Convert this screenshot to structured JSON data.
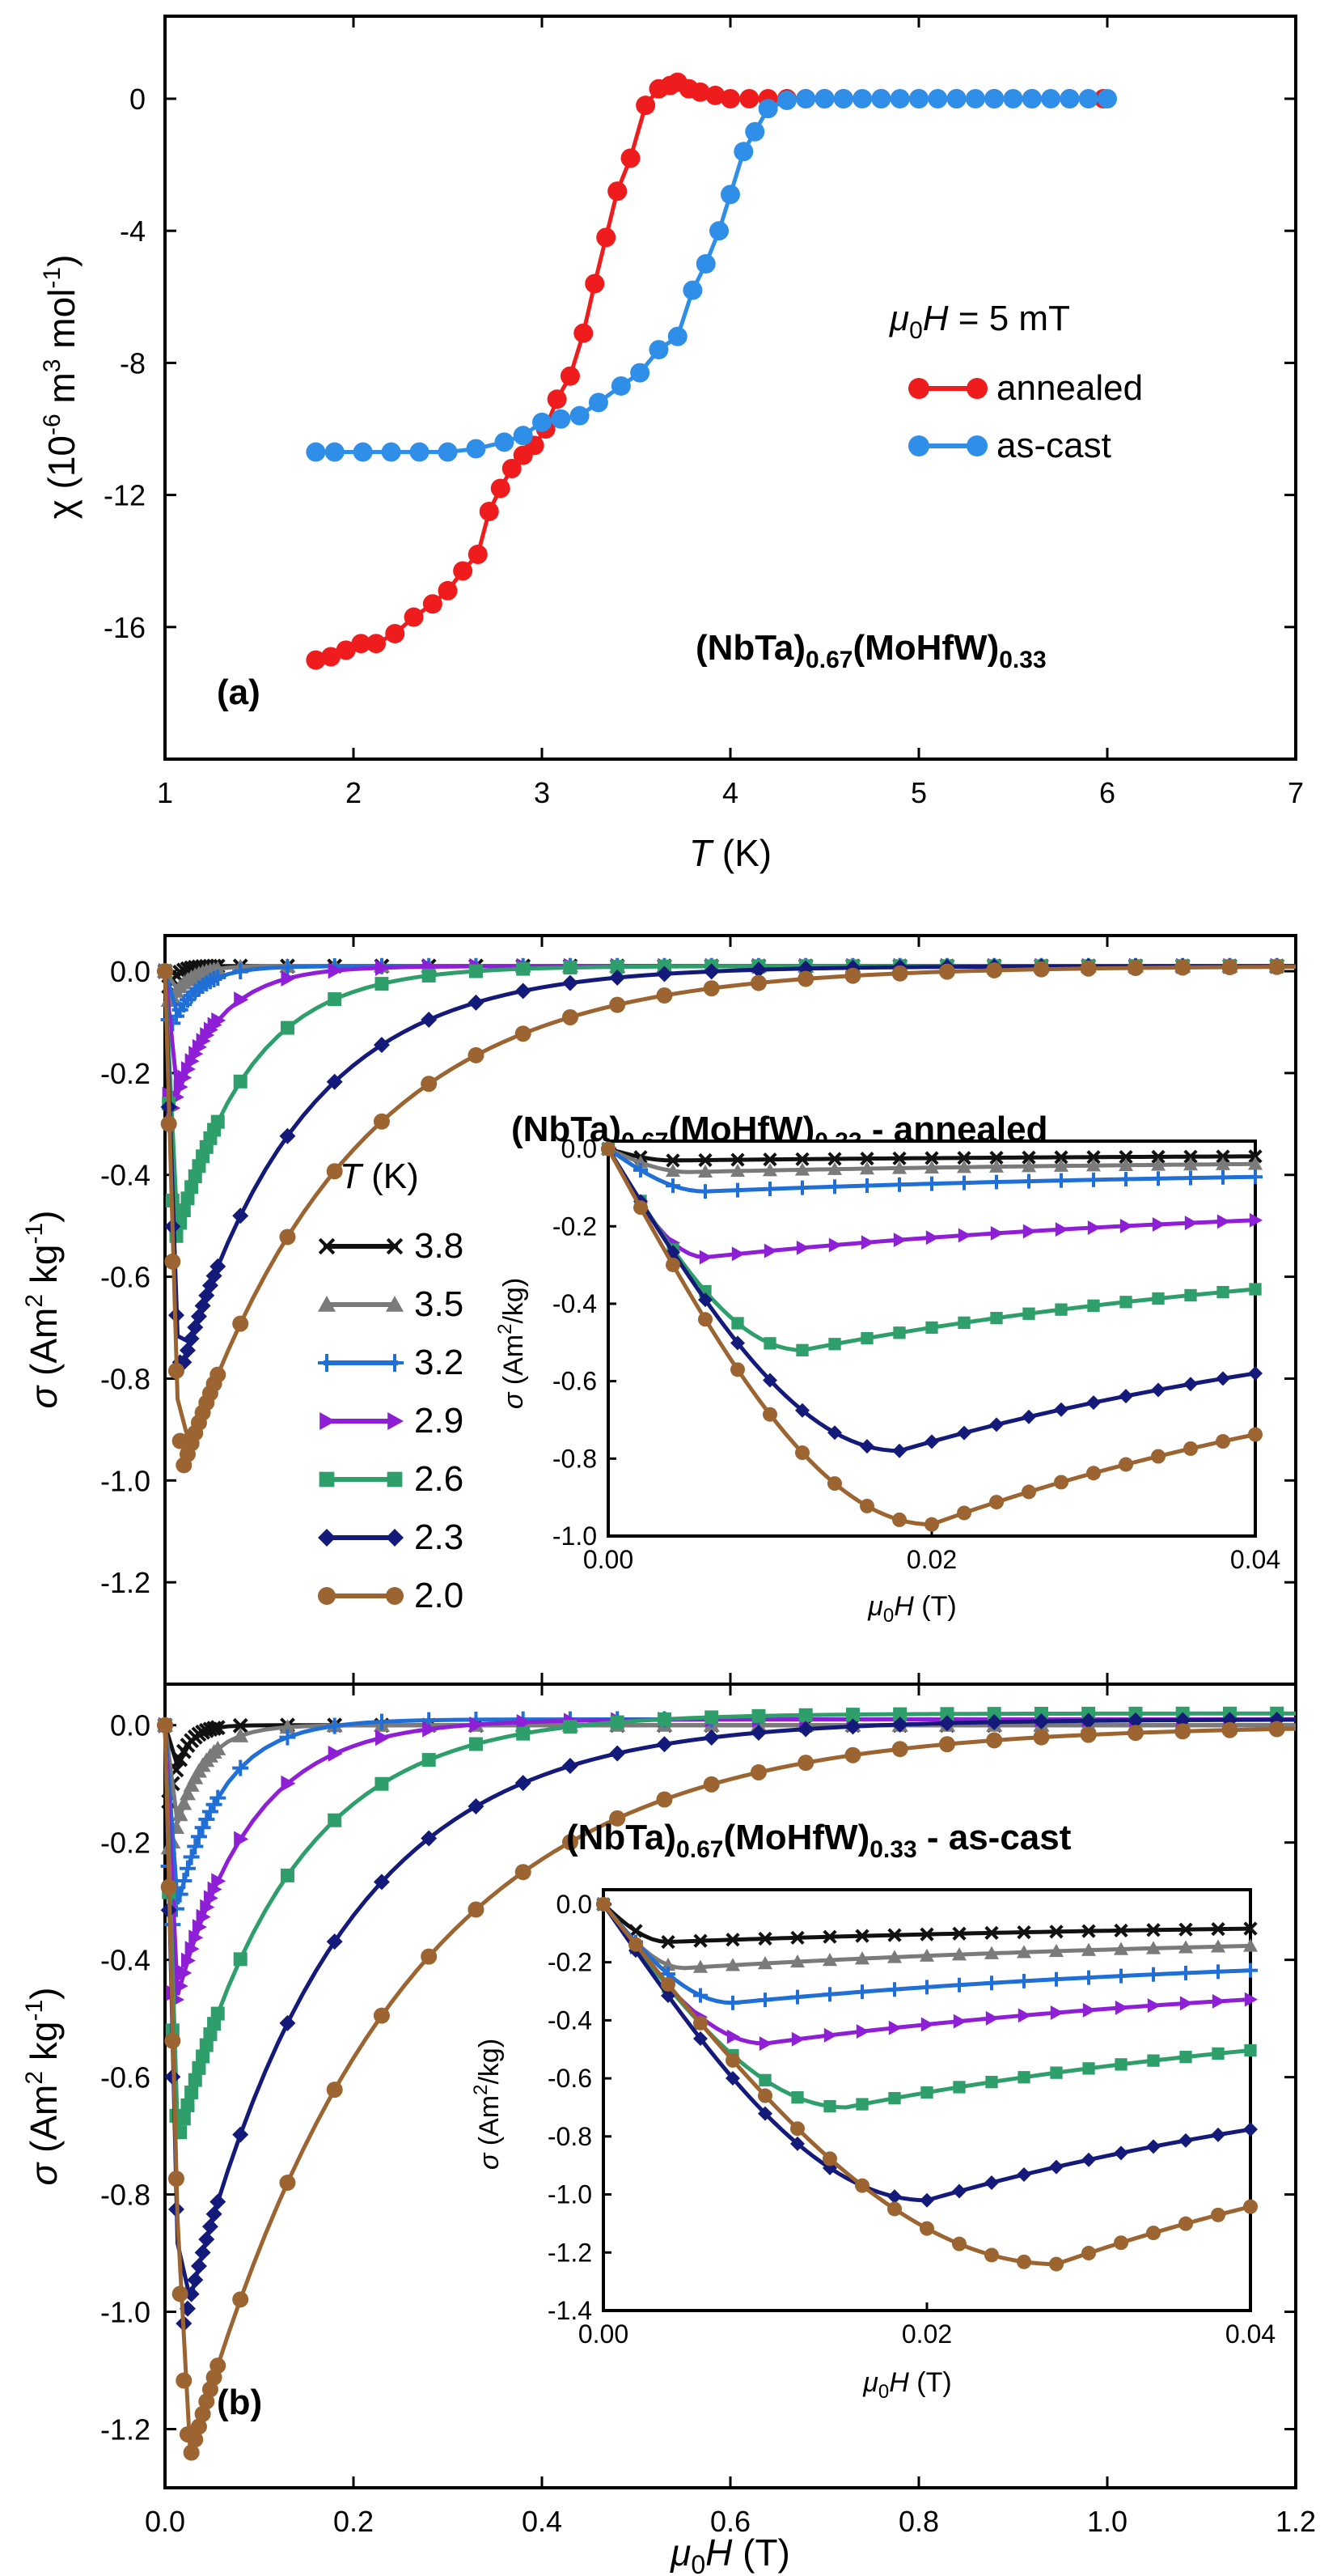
{
  "colors": {
    "annealed": "#ee1c1c",
    "as_cast": "#2f8fe8",
    "T3.8": "#111111",
    "T3.5": "#7a7a7a",
    "T3.2": "#1f6fd6",
    "T2.9": "#8e1fd6",
    "T2.6": "#2e9e6b",
    "T2.3": "#141a7a",
    "T2.0": "#9c6430"
  },
  "chart_data": [
    {
      "id": "a",
      "type": "line",
      "panel_label": "(a)",
      "title": "(NbTa)0.67(MoHfW)0.33",
      "xlabel": "T (K)",
      "ylabel": "χ (10-6 m3 mol-1)",
      "xlim": [
        1,
        7
      ],
      "ylim": [
        -20,
        2.5
      ],
      "xticks": [
        1,
        2,
        3,
        4,
        5,
        6,
        7
      ],
      "yticks": [
        0,
        -4,
        -8,
        -12,
        -16
      ],
      "legend_title": "μ0H = 5 mT",
      "series": [
        {
          "name": "annealed",
          "x": [
            1.8,
            1.88,
            1.96,
            2.04,
            2.12,
            2.22,
            2.32,
            2.42,
            2.5,
            2.58,
            2.66,
            2.72,
            2.78,
            2.84,
            2.9,
            2.96,
            3.02,
            3.08,
            3.15,
            3.22,
            3.28,
            3.34,
            3.4,
            3.47,
            3.55,
            3.62,
            3.68,
            3.72,
            3.78,
            3.84,
            3.92,
            4.0,
            4.1,
            4.2,
            4.3,
            4.4,
            4.5,
            4.6,
            4.8,
            5.0,
            5.2,
            5.4,
            5.6,
            5.8,
            5.98
          ],
          "values": [
            -17.0,
            -16.9,
            -16.7,
            -16.5,
            -16.5,
            -16.2,
            -15.7,
            -15.3,
            -14.9,
            -14.3,
            -13.8,
            -12.5,
            -11.8,
            -11.2,
            -10.8,
            -10.5,
            -10.0,
            -9.1,
            -8.4,
            -7.1,
            -5.6,
            -4.2,
            -2.8,
            -1.8,
            -0.2,
            0.3,
            0.4,
            0.5,
            0.3,
            0.2,
            0.1,
            0.0,
            0.0,
            0.0,
            0.0,
            0.0,
            0.0,
            0.0,
            0.0,
            0.0,
            0.0,
            0.0,
            0.0,
            0.0,
            0.0
          ]
        },
        {
          "name": "as-cast",
          "x": [
            1.8,
            1.9,
            2.05,
            2.2,
            2.35,
            2.5,
            2.65,
            2.8,
            2.9,
            3.0,
            3.1,
            3.2,
            3.3,
            3.42,
            3.52,
            3.62,
            3.72,
            3.8,
            3.87,
            3.94,
            4.0,
            4.07,
            4.13,
            4.2,
            4.3,
            4.4,
            4.5,
            4.6,
            4.7,
            4.8,
            4.9,
            5.0,
            5.1,
            5.2,
            5.3,
            5.4,
            5.5,
            5.6,
            5.7,
            5.8,
            5.9,
            6.0
          ],
          "values": [
            -10.7,
            -10.7,
            -10.7,
            -10.7,
            -10.7,
            -10.7,
            -10.6,
            -10.4,
            -10.2,
            -9.8,
            -9.7,
            -9.6,
            -9.2,
            -8.7,
            -8.3,
            -7.6,
            -7.2,
            -5.8,
            -5.0,
            -4.0,
            -2.9,
            -1.6,
            -1.0,
            -0.3,
            -0.05,
            0.0,
            0.0,
            0.0,
            0.0,
            0.0,
            0.0,
            0.0,
            0.0,
            0.0,
            0.0,
            0.0,
            0.0,
            0.0,
            0.0,
            0.0,
            0.0,
            0.0
          ]
        }
      ]
    },
    {
      "id": "b-annealed",
      "type": "line",
      "title": "(NbTa)0.67(MoHfW)0.33 - annealed",
      "xlabel": "",
      "ylabel": "σ (Am2 kg-1)",
      "xlim": [
        0,
        1.2
      ],
      "ylim": [
        -1.4,
        0.07
      ],
      "yticks": [
        0.0,
        -0.2,
        -0.4,
        -0.6,
        -0.8,
        -1.0,
        -1.2
      ],
      "legend_title": "T (K)",
      "series": [
        {
          "name": "3.8",
          "minimum": [
            0.004,
            -0.03
          ],
          "markers": "x"
        },
        {
          "name": "3.5",
          "minimum": [
            0.005,
            -0.06
          ],
          "markers": "triangle"
        },
        {
          "name": "3.2",
          "minimum": [
            0.006,
            -0.11
          ],
          "markers": "plus"
        },
        {
          "name": "2.9",
          "minimum": [
            0.006,
            -0.28
          ],
          "markers": "arrow"
        },
        {
          "name": "2.6",
          "minimum": [
            0.012,
            -0.52
          ],
          "markers": "square"
        },
        {
          "name": "2.3",
          "minimum": [
            0.018,
            -0.78
          ],
          "markers": "diamond"
        },
        {
          "name": "2.0",
          "minimum": [
            0.02,
            -0.97
          ],
          "markers": "circle"
        }
      ],
      "inset": {
        "xlabel": "μ0H (T)",
        "ylabel": "σ (Am2/kg)",
        "xlim": [
          0,
          0.04
        ],
        "ylim": [
          -1.0,
          0.02
        ],
        "xticks": [
          "0.00",
          "0.02",
          "0.04"
        ],
        "yticks": [
          "0.0",
          "-0.2",
          "-0.4",
          "-0.6",
          "-0.8",
          "-1.0"
        ]
      }
    },
    {
      "id": "b-as-cast",
      "type": "line",
      "panel_label": "(b)",
      "title": "(NbTa)0.67(MoHfW)0.33 - as-cast",
      "xlabel": "μ0H (T)",
      "ylabel": "σ (Am2 kg-1)",
      "xlim": [
        0,
        1.2
      ],
      "ylim": [
        -1.3,
        0.07
      ],
      "xticks": [
        "0.0",
        "0.2",
        "0.4",
        "0.6",
        "0.8",
        "1.0",
        "1.2"
      ],
      "yticks": [
        "0.0",
        "-0.2",
        "-0.4",
        "-0.6",
        "-0.8",
        "-1.0",
        "-1.2"
      ],
      "series": [
        {
          "name": "3.8",
          "minimum": [
            0.004,
            -0.13
          ]
        },
        {
          "name": "3.5",
          "minimum": [
            0.005,
            -0.22
          ]
        },
        {
          "name": "3.2",
          "minimum": [
            0.008,
            -0.34
          ]
        },
        {
          "name": "2.9",
          "minimum": [
            0.01,
            -0.48
          ]
        },
        {
          "name": "2.6",
          "minimum": [
            0.015,
            -0.7
          ]
        },
        {
          "name": "2.3",
          "minimum": [
            0.02,
            -1.02
          ]
        },
        {
          "name": "2.0",
          "minimum": [
            0.028,
            -1.24
          ]
        }
      ],
      "inset": {
        "xlabel": "μ0H (T)",
        "ylabel": "σ (Am2/kg)",
        "xlim": [
          0,
          0.04
        ],
        "ylim": [
          -1.4,
          0.05
        ],
        "xticks": [
          "0.00",
          "0.02",
          "0.04"
        ],
        "yticks": [
          "0.0",
          "-0.2",
          "-0.4",
          "-0.6",
          "-0.8",
          "-1.0",
          "-1.2",
          "-1.4"
        ]
      }
    }
  ],
  "panel_a": {
    "ylabel_main": "χ (10",
    "ylabel_exp1": "-6",
    "ylabel_mid": " m",
    "ylabel_exp2": "3",
    "ylabel_end": " mol",
    "ylabel_exp3": "-1",
    "ylabel_close": ")",
    "xlabel_T": "T",
    "xlabel_unit": " (K)",
    "legend_mu": "μ",
    "legend_sub": "0",
    "legend_H": "H",
    "legend_rest": " = 5 mT",
    "legend_annealed": "annealed",
    "legend_ascast": "as-cast",
    "title_a": "(NbTa)",
    "title_s1": "0.67",
    "title_b": "(MoHfW)",
    "title_s2": "0.33",
    "label": "(a)"
  },
  "panel_b": {
    "sigma": "σ",
    "unit_open": " (Am",
    "unit_exp2": "2",
    "unit_kg": " kg",
    "unit_expm1": "-1",
    "unit_close": ")",
    "inset_unit": " (Am",
    "inset_exp": "2",
    "inset_rest": "/kg)",
    "mu": "μ",
    "sub0": "0",
    "H": "H",
    "T_unit": " (T)",
    "legend_T": "T",
    "legend_K": " (K)",
    "legend_items": [
      "3.8",
      "3.5",
      "3.2",
      "2.9",
      "2.6",
      "2.3",
      "2.0"
    ],
    "title_top_a": "(NbTa)",
    "title_top_s1": "0.67",
    "title_top_b": "(MoHfW)",
    "title_top_s2": "0.33",
    "title_top_tail": " - annealed",
    "title_bot_tail": " - as-cast",
    "label": "(b)"
  }
}
